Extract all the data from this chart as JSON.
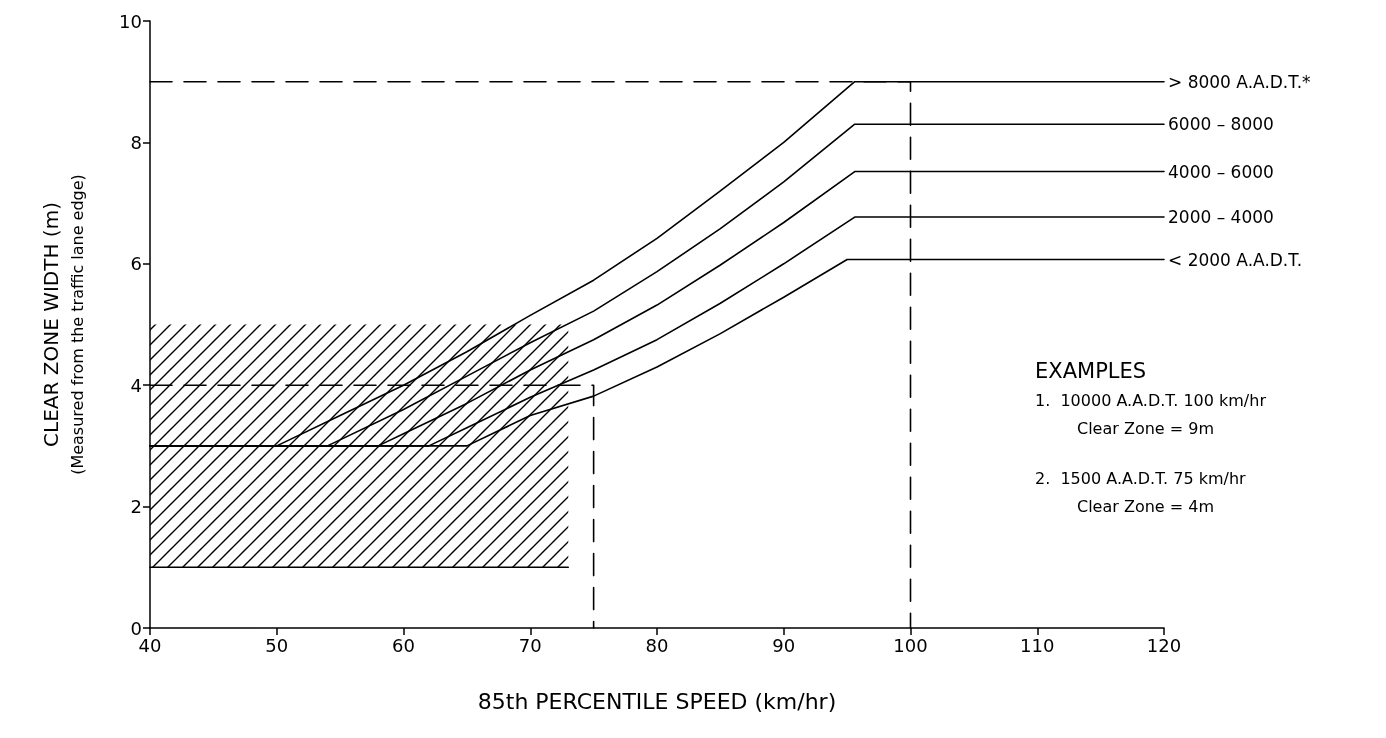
{
  "chart_data": {
    "type": "line",
    "xlabel": "85th PERCENTILE SPEED (km/hr)",
    "ylabel": "CLEAR ZONE WIDTH (m)\n(Measured from the traffic lane edge)",
    "xlim": [
      40,
      120
    ],
    "xticks": [
      40,
      50,
      60,
      70,
      80,
      90,
      100,
      110,
      120
    ],
    "ylim": [
      0,
      10
    ],
    "yticks": [
      0,
      2,
      4,
      6,
      8,
      10
    ],
    "marker": "none",
    "line_style": "solid",
    "series": [
      {
        "name": "> 8000 A.A.D.T.*",
        "color": "#000000",
        "x": [
          40,
          50,
          55,
          60,
          65,
          70,
          75,
          80,
          85,
          90,
          95.6,
          120
        ],
        "values": [
          3,
          3,
          3.5,
          4.0,
          4.55,
          5.15,
          5.73,
          6.42,
          7.2,
          8.0,
          9,
          9
        ]
      },
      {
        "name": "6000 – 8000",
        "color": "#000000",
        "x": [
          40,
          54,
          60,
          65,
          70,
          75,
          80,
          85,
          90,
          95.6,
          120
        ],
        "values": [
          3,
          3,
          3.6,
          4.15,
          4.7,
          5.22,
          5.87,
          6.58,
          7.35,
          8.3,
          8.3
        ]
      },
      {
        "name": "4000 – 6000",
        "color": "#000000",
        "x": [
          40,
          58,
          60,
          65,
          70,
          75,
          80,
          85,
          90,
          95.6,
          120
        ],
        "values": [
          3,
          3,
          3.2,
          3.7,
          4.25,
          4.75,
          5.32,
          5.98,
          6.68,
          7.52,
          7.52
        ]
      },
      {
        "name": "2000 – 4000",
        "color": "#000000",
        "x": [
          40,
          62,
          65,
          70,
          75,
          80,
          85,
          90,
          95.6,
          120
        ],
        "values": [
          3,
          3,
          3.3,
          3.8,
          4.25,
          4.75,
          5.35,
          6.0,
          6.77,
          6.77
        ]
      },
      {
        "name": "< 2000 A.A.D.T.",
        "color": "#000000",
        "x": [
          40,
          65,
          70,
          75,
          80,
          85,
          90,
          95,
          120
        ],
        "values": [
          3,
          3,
          3.5,
          3.82,
          4.3,
          4.85,
          5.45,
          6.07,
          6.07
        ]
      },
      {
        "color": "#000000",
        "x": [
          40,
          73
        ],
        "values": [
          1,
          1
        ],
        "lower": [
          1,
          1
        ],
        "upper": [
          5,
          5
        ]
      },
      {
        "color": "#000000",
        "line_style": "dashed",
        "x": [
          40,
          100,
          100
        ],
        "values": [
          9,
          9,
          0
        ]
      },
      {
        "color": "#000000",
        "line_style": "dashed",
        "x": [
          40,
          75,
          75
        ],
        "values": [
          4,
          4,
          0
        ]
      }
    ],
    "annotations": [
      "EXAMPLES",
      "1.  10000 A.A.D.T. 100 km/hr",
      "Clear Zone = 9m",
      "2.  1500 A.A.D.T. 75 km/hr",
      "Clear Zone = 4m"
    ]
  }
}
